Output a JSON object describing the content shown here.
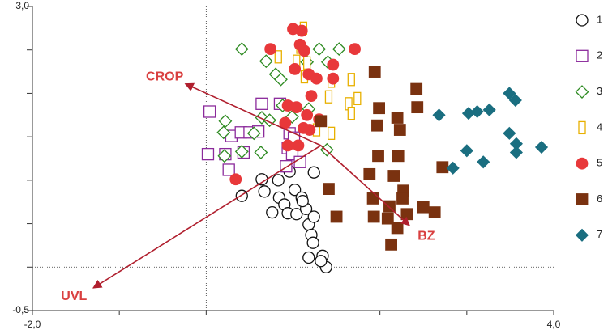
{
  "chart_data": {
    "type": "scatter",
    "xlim": [
      -2,
      4
    ],
    "ylim": [
      -0.5,
      3
    ],
    "xticks": [
      {
        "value": -2,
        "label": "-2,0"
      },
      {
        "value": 4,
        "label": "4,0"
      }
    ],
    "yticks": [
      {
        "value": -0.5,
        "label": "-0,5"
      },
      {
        "value": 3,
        "label": "3,0"
      }
    ],
    "xminor_ticks": [
      -1,
      0,
      1,
      2,
      3
    ],
    "yminor_ticks": [
      0,
      0.5,
      1,
      1.5,
      2,
      2.5
    ],
    "reference_lines": true,
    "legend": "right",
    "series": [
      {
        "name": "1",
        "color": "#111111",
        "marker": "circle",
        "filled": false,
        "x": [
          0.41,
          0.64,
          0.67,
          0.83,
          0.96,
          1.24,
          0.84,
          0.9,
          1.02,
          1.1,
          0.76,
          0.94,
          1.04,
          1.15,
          1.18,
          1.21,
          1.23,
          1.18,
          1.34,
          1.38,
          1.32,
          1.24,
          1.11
        ],
        "values": [
          0.82,
          1.01,
          0.87,
          1.0,
          1.1,
          1.09,
          0.8,
          0.72,
          0.89,
          0.8,
          0.63,
          0.62,
          0.61,
          0.67,
          0.49,
          0.37,
          0.28,
          0.11,
          0.13,
          0.0,
          0.07,
          0.58,
          0.76
        ]
      },
      {
        "name": "2",
        "color": "#8b2a9b",
        "marker": "square",
        "filled": false,
        "x": [
          0.04,
          0.02,
          0.22,
          0.29,
          0.4,
          0.5,
          0.64,
          0.6,
          0.43,
          0.26,
          0.85,
          0.96,
          0.94,
          0.92,
          0.99,
          1.08,
          1.01
        ],
        "values": [
          1.79,
          1.3,
          1.3,
          1.51,
          1.55,
          1.55,
          1.88,
          1.56,
          1.32,
          1.12,
          1.88,
          1.54,
          1.37,
          1.16,
          1.3,
          1.21,
          1.49
        ]
      },
      {
        "name": "3",
        "color": "#2e8b22",
        "marker": "diamond",
        "filled": false,
        "x": [
          0.41,
          0.69,
          0.8,
          0.86,
          1.16,
          1.3,
          1.4,
          1.53,
          0.22,
          0.2,
          0.21,
          0.41,
          0.63,
          0.55,
          0.64,
          0.73,
          0.88,
          0.97,
          0.99,
          1.18,
          1.39
        ],
        "values": [
          2.51,
          2.37,
          2.22,
          2.16,
          2.36,
          2.51,
          2.36,
          2.51,
          1.68,
          1.55,
          1.28,
          1.33,
          1.32,
          1.54,
          1.72,
          1.69,
          1.86,
          1.84,
          1.73,
          1.82,
          1.35
        ]
      },
      {
        "name": "4",
        "color": "#e8b000",
        "marker": "bar",
        "filled": false,
        "x": [
          1.12,
          1.08,
          0.83,
          1.04,
          1.16,
          1.13,
          1.44,
          1.67,
          1.74,
          1.64,
          1.67,
          1.41,
          1.44,
          1.27
        ],
        "values": [
          2.75,
          2.53,
          2.42,
          2.37,
          2.35,
          2.19,
          2.14,
          2.16,
          1.94,
          1.88,
          1.77,
          1.96,
          1.54,
          1.58
        ]
      },
      {
        "name": "5",
        "color": "#e8383a",
        "marker": "circle",
        "filled": true,
        "x": [
          1.0,
          1.1,
          1.08,
          1.13,
          0.74,
          1.71,
          1.02,
          1.18,
          1.46,
          1.27,
          1.46,
          1.21,
          0.94,
          1.04,
          1.16,
          1.19,
          0.91,
          1.12,
          1.3,
          0.94,
          1.06,
          0.34
        ],
        "values": [
          2.74,
          2.72,
          2.56,
          2.49,
          2.51,
          2.51,
          2.28,
          2.22,
          2.33,
          2.17,
          2.17,
          1.97,
          1.86,
          1.84,
          1.75,
          1.58,
          1.66,
          1.6,
          1.7,
          1.4,
          1.4,
          1.01
        ]
      },
      {
        "name": "6",
        "color": "#7a3210",
        "marker": "square",
        "filled": true,
        "x": [
          1.94,
          2.42,
          2.43,
          1.99,
          2.2,
          2.23,
          1.97,
          1.98,
          2.21,
          1.88,
          2.16,
          2.27,
          2.26,
          2.11,
          1.92,
          1.41,
          1.5,
          1.93,
          2.09,
          2.2,
          2.31,
          2.63,
          2.5,
          2.72,
          2.13,
          1.32
        ],
        "values": [
          2.25,
          2.05,
          1.84,
          1.83,
          1.72,
          1.58,
          1.63,
          1.28,
          1.28,
          1.07,
          1.05,
          0.88,
          0.79,
          0.7,
          0.79,
          0.9,
          0.58,
          0.58,
          0.56,
          0.45,
          0.61,
          0.63,
          0.69,
          1.15,
          0.26,
          1.68
        ]
      },
      {
        "name": "7",
        "color": "#1a6e80",
        "marker": "diamond",
        "filled": true,
        "x": [
          2.68,
          3.02,
          3.12,
          3.26,
          3.49,
          3.56,
          3.49,
          3.57,
          3.57,
          3.86,
          3.0,
          3.19,
          2.84
        ],
        "values": [
          1.75,
          1.77,
          1.79,
          1.81,
          2.0,
          1.92,
          1.54,
          1.42,
          1.32,
          1.38,
          1.34,
          1.21,
          1.14
        ]
      }
    ],
    "vectors": {
      "color": "#b01f2e",
      "label_color": "#d94040",
      "origin": {
        "x": 1.32,
        "y": 1.4
      },
      "items": [
        {
          "label": "CROP",
          "x": -0.24,
          "y": 2.11
        },
        {
          "label": "UVL",
          "x": -1.3,
          "y": -0.24
        },
        {
          "label": "BZ",
          "x": 2.34,
          "y": 0.48
        }
      ]
    }
  }
}
